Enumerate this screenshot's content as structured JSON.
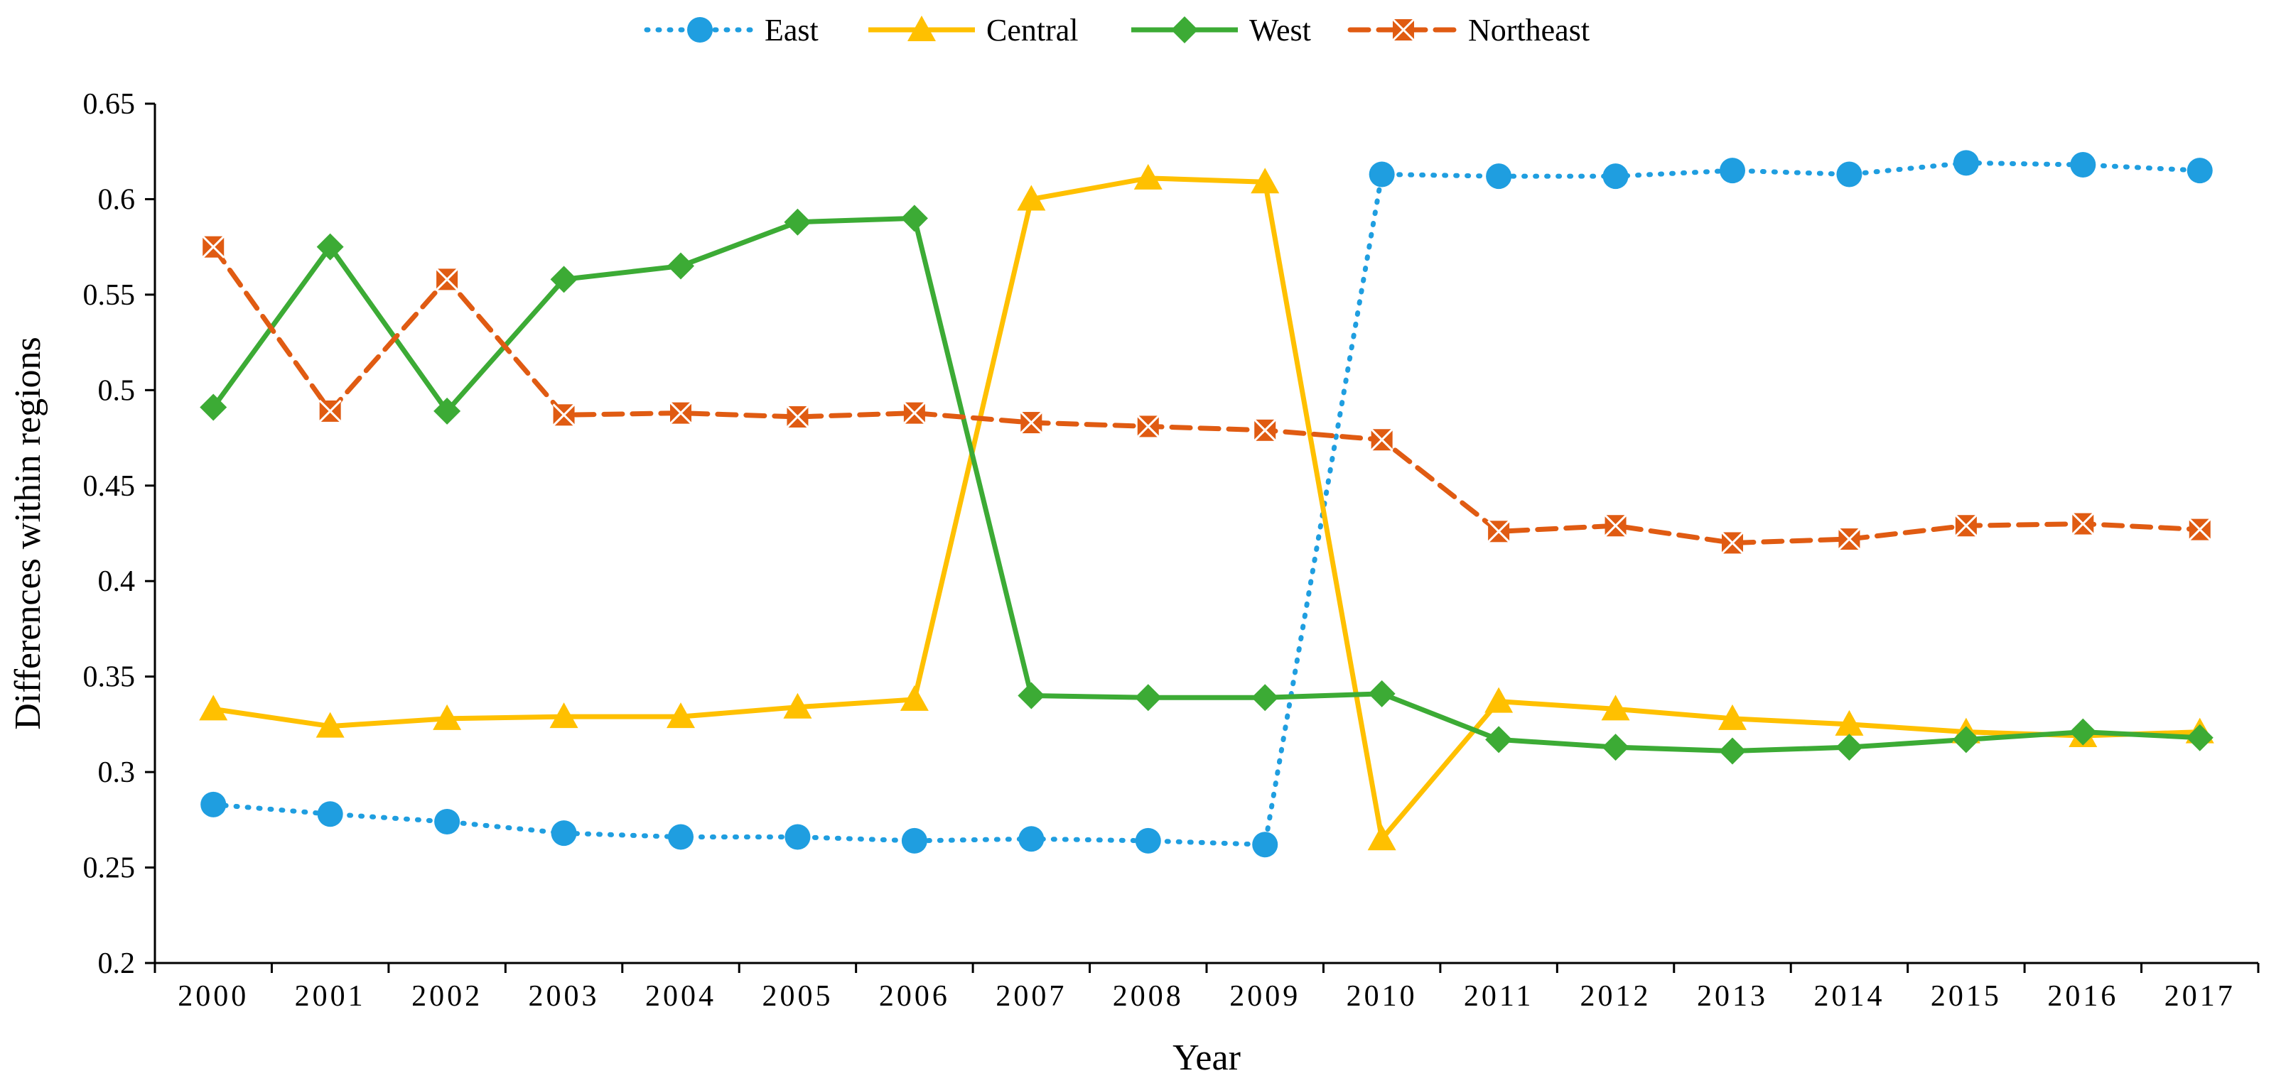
{
  "chart_data": {
    "type": "line",
    "title": "",
    "xlabel": "Year",
    "ylabel": "Differences within regions",
    "ylim": [
      0.2,
      0.65
    ],
    "yticks": [
      "0.2",
      "0.25",
      "0.3",
      "0.35",
      "0.4",
      "0.45",
      "0.5",
      "0.55",
      "0.6",
      "0.65"
    ],
    "grid": false,
    "legend_position": "top",
    "categories": [
      "2000",
      "2001",
      "2002",
      "2003",
      "2004",
      "2005",
      "2006",
      "2007",
      "2008",
      "2009",
      "2010",
      "2011",
      "2012",
      "2013",
      "2014",
      "2015",
      "2016",
      "2017"
    ],
    "series": [
      {
        "name": "East",
        "color": "#1f9ee0",
        "line_style": "dotted",
        "marker": "circle",
        "values": [
          0.283,
          0.278,
          0.274,
          0.268,
          0.266,
          0.266,
          0.264,
          0.265,
          0.264,
          0.262,
          0.613,
          0.612,
          0.612,
          0.615,
          0.613,
          0.619,
          0.618,
          0.615
        ]
      },
      {
        "name": "Central",
        "color": "#ffc000",
        "line_style": "solid",
        "marker": "triangle",
        "values": [
          0.333,
          0.324,
          0.328,
          0.329,
          0.329,
          0.334,
          0.338,
          0.6,
          0.611,
          0.609,
          0.265,
          0.337,
          0.333,
          0.328,
          0.325,
          0.321,
          0.319,
          0.321
        ]
      },
      {
        "name": "West",
        "color": "#3cab35",
        "line_style": "solid",
        "marker": "diamond",
        "values": [
          0.491,
          0.575,
          0.489,
          0.558,
          0.565,
          0.588,
          0.59,
          0.34,
          0.339,
          0.339,
          0.341,
          0.317,
          0.313,
          0.311,
          0.313,
          0.317,
          0.321,
          0.318
        ]
      },
      {
        "name": "Northeast",
        "color": "#e05b12",
        "line_style": "dashed",
        "marker": "square-x",
        "values": [
          0.575,
          0.489,
          0.558,
          0.487,
          0.488,
          0.486,
          0.488,
          0.483,
          0.481,
          0.479,
          0.474,
          0.426,
          0.429,
          0.42,
          0.422,
          0.429,
          0.43,
          0.427
        ]
      }
    ]
  }
}
